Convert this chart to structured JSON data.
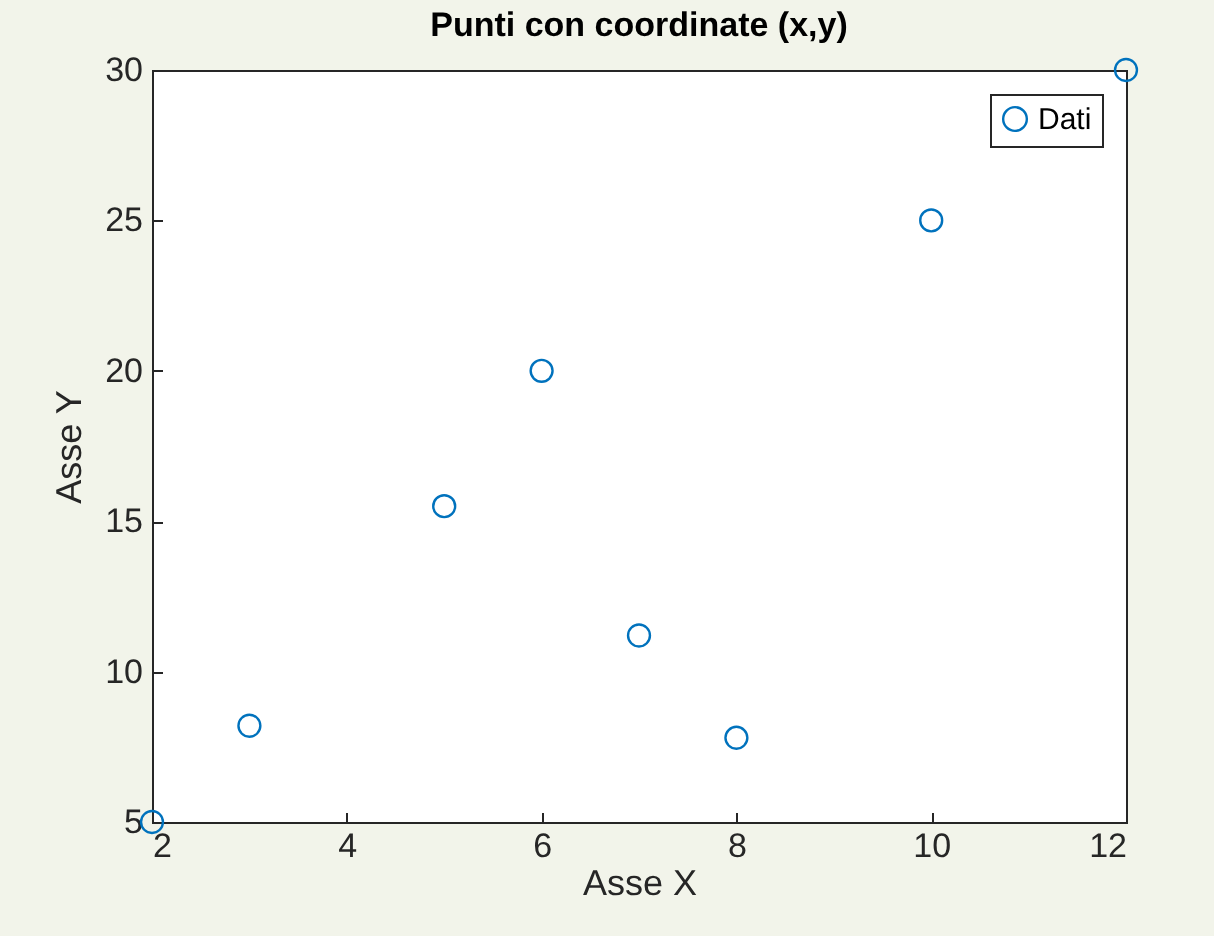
{
  "chart_data": {
    "type": "scatter",
    "title": "Punti con coordinate (x,y)",
    "xlabel": "Asse X",
    "ylabel": "Asse Y",
    "x": [
      2,
      3,
      5,
      6,
      7,
      8,
      10,
      12
    ],
    "series": [
      {
        "name": "Dati",
        "color": "#0072bd",
        "values": [
          5,
          8.2,
          15.5,
          20,
          11.2,
          7.8,
          25,
          30
        ]
      }
    ],
    "xlim": [
      2,
      12
    ],
    "ylim": [
      5,
      30
    ],
    "xticks": [
      2,
      4,
      6,
      8,
      10,
      12
    ],
    "yticks": [
      5,
      10,
      15,
      20,
      25,
      30
    ],
    "legend": "top right",
    "marker": "circle"
  }
}
